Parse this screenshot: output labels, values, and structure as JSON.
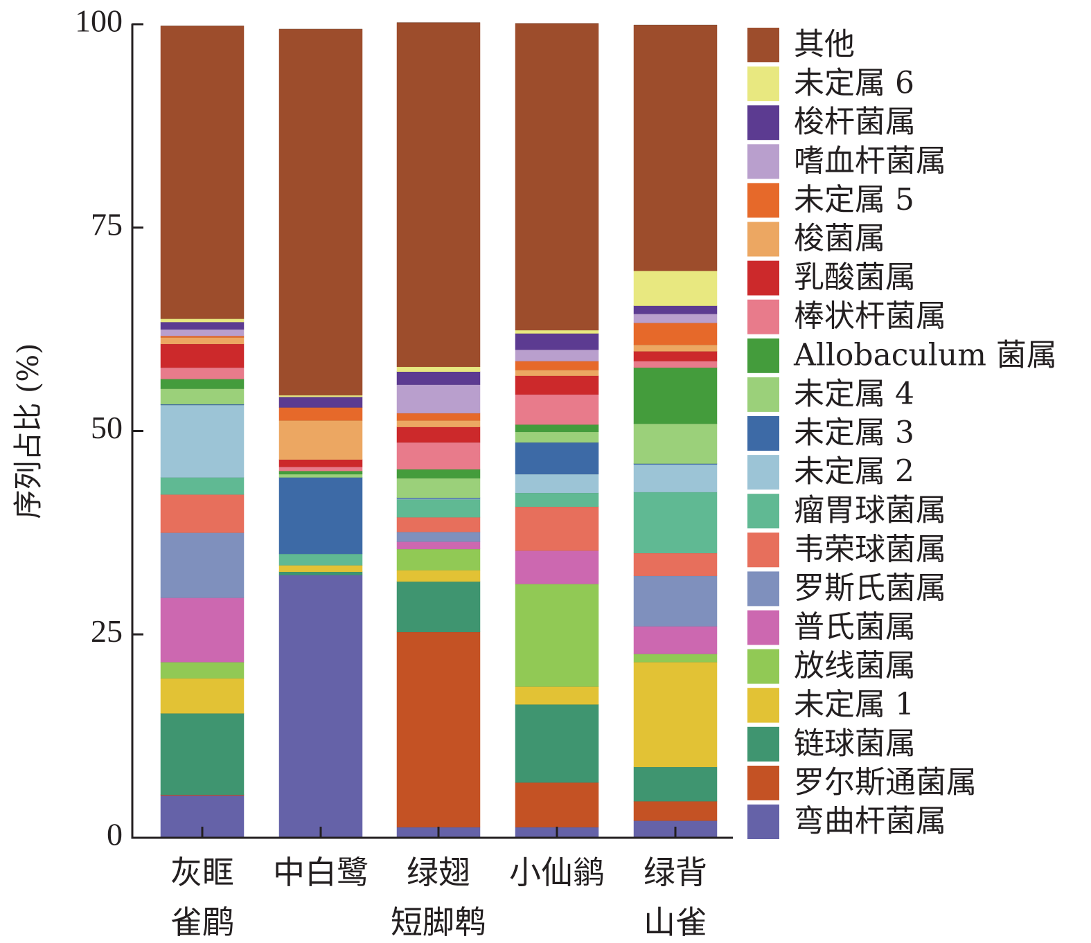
{
  "chart_data": {
    "type": "bar",
    "stacked": true,
    "ylabel": "序列占比 (%)",
    "ylim": [
      0,
      100
    ],
    "yticks": [
      "0",
      "25",
      "50",
      "75",
      "100"
    ],
    "grid": false,
    "legend_position": "right",
    "categories": [
      "灰眶\n雀鹛",
      "中白鹭",
      "绿翅\n短脚鹎",
      "小仙鹟",
      "绿背\n山雀"
    ],
    "series": [
      {
        "name": "弯曲杆菌属",
        "color": "#6562a8",
        "values": [
          5.2,
          32.3,
          1.3,
          1.3,
          2.1
        ]
      },
      {
        "name": "罗尔斯通菌属",
        "color": "#c45224",
        "values": [
          0.1,
          0.0,
          24.0,
          5.5,
          2.4
        ]
      },
      {
        "name": "链球菌属",
        "color": "#3f9570",
        "values": [
          10.0,
          0.4,
          6.2,
          9.6,
          4.2
        ]
      },
      {
        "name": "未定属 1",
        "color": "#e2c235",
        "values": [
          4.3,
          0.8,
          1.4,
          2.2,
          12.9
        ]
      },
      {
        "name": "放线菌属",
        "color": "#91c955",
        "values": [
          2.0,
          0.0,
          2.6,
          12.6,
          1.0
        ]
      },
      {
        "name": "普氏菌属",
        "color": "#cc68b0",
        "values": [
          7.9,
          0.0,
          0.9,
          4.1,
          3.4
        ]
      },
      {
        "name": "罗斯氏菌属",
        "color": "#7f90bd",
        "values": [
          8.0,
          0.0,
          1.2,
          0.0,
          6.2
        ]
      },
      {
        "name": "韦荣球菌属",
        "color": "#e76f5c",
        "values": [
          4.7,
          0.0,
          1.8,
          5.4,
          2.8
        ]
      },
      {
        "name": "瘤胃球菌属",
        "color": "#60b993",
        "values": [
          2.1,
          1.4,
          2.2,
          1.7,
          7.5
        ]
      },
      {
        "name": "未定属 2",
        "color": "#9cc4d6",
        "values": [
          8.9,
          0.0,
          0.1,
          2.3,
          3.4
        ]
      },
      {
        "name": "未定属 3",
        "color": "#3d6aa6",
        "values": [
          0.1,
          9.4,
          0.1,
          3.9,
          0.1
        ]
      },
      {
        "name": "未定属 4",
        "color": "#9bd07a",
        "values": [
          1.9,
          0.4,
          2.4,
          1.3,
          4.9
        ]
      },
      {
        "name": "Allobaculum 菌属",
        "color": "#449c3c",
        "values": [
          1.2,
          0.4,
          1.1,
          0.9,
          6.9
        ]
      },
      {
        "name": "棒状杆菌属",
        "color": "#e87b8b",
        "values": [
          1.4,
          0.5,
          3.3,
          3.7,
          0.8
        ]
      },
      {
        "name": "乳酸菌属",
        "color": "#cc292b",
        "values": [
          2.9,
          0.9,
          1.9,
          2.3,
          1.2
        ]
      },
      {
        "name": "梭菌属",
        "color": "#eca762",
        "values": [
          0.8,
          4.8,
          0.8,
          0.7,
          0.8
        ]
      },
      {
        "name": "未定属 5",
        "color": "#e6692a",
        "values": [
          0.2,
          1.6,
          0.9,
          1.1,
          2.7
        ]
      },
      {
        "name": "嗜血杆菌属",
        "color": "#b99fcd",
        "values": [
          0.8,
          0.0,
          3.5,
          1.4,
          1.1
        ]
      },
      {
        "name": "梭杆菌属",
        "color": "#5c3b91",
        "values": [
          0.9,
          1.3,
          1.6,
          2.0,
          1.0
        ]
      },
      {
        "name": "未定属 6",
        "color": "#e8e880",
        "values": [
          0.4,
          0.2,
          0.6,
          0.4,
          4.3
        ]
      },
      {
        "name": "其他",
        "color": "#9d4d2c",
        "values": [
          36.0,
          45.0,
          42.3,
          37.7,
          30.2
        ]
      }
    ]
  }
}
